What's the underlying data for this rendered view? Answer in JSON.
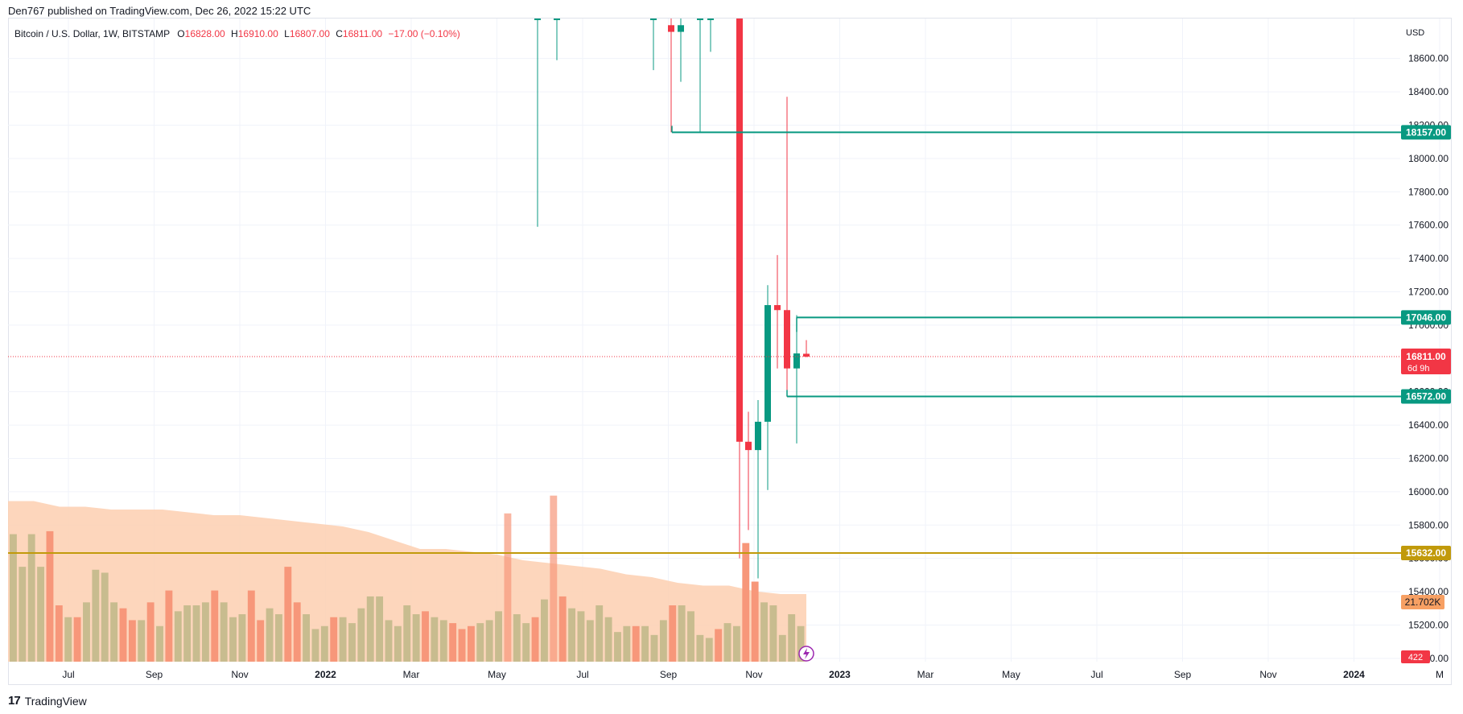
{
  "publish_line": "Den767 published on TradingView.com, Dec 26, 2022 15:22 UTC",
  "legend": {
    "symbol": "Bitcoin / U.S. Dollar, 1W, BITSTAMP",
    "o_label": "O",
    "o_value": "16828.00",
    "h_label": "H",
    "h_value": "16910.00",
    "l_label": "L",
    "l_value": "16807.00",
    "c_label": "C",
    "c_value": "16811.00",
    "change": "−17.00 (−0.10%)"
  },
  "currency": "USD",
  "brand": "TradingView",
  "brand_mark": "17",
  "colors": {
    "up": "#089981",
    "down": "#f23645",
    "level_line": "#089981",
    "level_yellow": "#c19a0b",
    "vol_up": "#c8bc8f",
    "vol_down": "#f7977a",
    "vol_area": "#fdcfb0",
    "price_tag": "#f23645",
    "vol_tag": "#f7a063",
    "grid": "#f0f3fa"
  },
  "chart_data": {
    "type": "candlestick",
    "y_axis_labels": [
      "18600.00",
      "18400.00",
      "18200.00",
      "18000.00",
      "17800.00",
      "17600.00",
      "17400.00",
      "17200.00",
      "17000.00",
      "16600.00",
      "16400.00",
      "16200.00",
      "16000.00",
      "15800.00",
      "15600.00",
      "15400.00",
      "15200.00",
      "15000.00"
    ],
    "x_axis_labels": [
      "Jul",
      "Sep",
      "Nov",
      "2022",
      "Mar",
      "May",
      "Jul",
      "Sep",
      "Nov",
      "2023",
      "Mar",
      "May",
      "Jul",
      "Sep",
      "Nov",
      "2024",
      "M"
    ],
    "x_axis_bold": [
      "2022",
      "2023",
      "2024"
    ],
    "ylim": [
      14980,
      18840
    ],
    "candles": [
      {
        "o": 19200,
        "h": 19300,
        "l": 17590,
        "c": 19200
      },
      {
        "o": 19200,
        "h": 19300,
        "l": 18590,
        "c": 19200
      },
      {
        "o": 18900,
        "h": 19300,
        "l": 18530,
        "c": 19200
      },
      {
        "o": 18800,
        "h": 18900,
        "l": 18157,
        "c": 18760
      },
      {
        "o": 18760,
        "h": 18960,
        "l": 18460,
        "c": 18800
      },
      {
        "o": 19200,
        "h": 19300,
        "l": 18157,
        "c": 19200
      },
      {
        "o": 18900,
        "h": 19300,
        "l": 18640,
        "c": 19200
      },
      {
        "o": 19200,
        "h": 19300,
        "l": 15600,
        "c": 16300
      },
      {
        "o": 16300,
        "h": 16480,
        "l": 15770,
        "c": 16250
      },
      {
        "o": 16250,
        "h": 16550,
        "l": 15480,
        "c": 16420
      },
      {
        "o": 16420,
        "h": 17240,
        "l": 16010,
        "c": 17120
      },
      {
        "o": 17120,
        "h": 17420,
        "l": 16740,
        "c": 17090
      },
      {
        "o": 17090,
        "h": 18370,
        "l": 16570,
        "c": 16740
      },
      {
        "o": 16740,
        "h": 17060,
        "l": 16290,
        "c": 16830
      },
      {
        "o": 16828,
        "h": 16910,
        "l": 16807,
        "c": 16811
      }
    ],
    "candle_x_labels": [
      "May",
      "Jun",
      "Sep",
      "Sep",
      "Sep",
      "Oct",
      "Oct",
      "Nov",
      "Nov",
      "Nov",
      "Nov",
      "Dec",
      "Dec",
      "Dec",
      "Dec"
    ],
    "levels": [
      {
        "price": 18157,
        "label": "18157.00"
      },
      {
        "price": 17046,
        "label": "17046.00"
      },
      {
        "price": 16572,
        "label": "16572.00"
      },
      {
        "price": 15632,
        "label": "15632.00"
      }
    ],
    "last_price": {
      "price": 16811,
      "label": "16811.00",
      "countdown": "6d 9h"
    },
    "volume": {
      "bars": [
        0.43,
        0.32,
        0.43,
        0.32,
        0.44,
        0.19,
        0.15,
        0.15,
        0.2,
        0.31,
        0.3,
        0.2,
        0.18,
        0.14,
        0.14,
        0.2,
        0.12,
        0.24,
        0.17,
        0.19,
        0.19,
        0.2,
        0.24,
        0.2,
        0.15,
        0.16,
        0.24,
        0.14,
        0.18,
        0.16,
        0.32,
        0.2,
        0.16,
        0.11,
        0.12,
        0.15,
        0.15,
        0.13,
        0.18,
        0.22,
        0.22,
        0.14,
        0.12,
        0.19,
        0.16,
        0.17,
        0.15,
        0.14,
        0.13,
        0.11,
        0.12,
        0.13,
        0.14,
        0.17,
        0.5,
        0.16,
        0.13,
        0.15,
        0.21,
        0.56,
        0.22,
        0.18,
        0.17,
        0.14,
        0.19,
        0.15,
        0.1,
        0.12,
        0.12,
        0.12,
        0.09,
        0.14,
        0.19,
        0.19,
        0.17,
        0.09,
        0.08,
        0.11,
        0.13,
        0.12,
        0.4,
        0.27,
        0.2,
        0.19,
        0.09,
        0.16,
        0.12
      ],
      "up": [
        1,
        1,
        1,
        1,
        0,
        0,
        1,
        0,
        1,
        1,
        1,
        1,
        0,
        0,
        1,
        0,
        1,
        0,
        1,
        1,
        1,
        1,
        0,
        1,
        1,
        1,
        0,
        0,
        1,
        1,
        0,
        0,
        1,
        1,
        1,
        0,
        1,
        1,
        1,
        1,
        1,
        1,
        1,
        1,
        1,
        0,
        1,
        1,
        0,
        0,
        0,
        1,
        1,
        1,
        0,
        1,
        1,
        0,
        1,
        0,
        0,
        1,
        1,
        1,
        1,
        1,
        1,
        1,
        0,
        1,
        1,
        1,
        0,
        1,
        1,
        1,
        1,
        0,
        1,
        1,
        0,
        0,
        1,
        1,
        1,
        1,
        1
      ],
      "area_top_frac": [
        0.57,
        0.57,
        0.55,
        0.55,
        0.54,
        0.54,
        0.54,
        0.53,
        0.52,
        0.52,
        0.51,
        0.5,
        0.49,
        0.48,
        0.46,
        0.43,
        0.4,
        0.4,
        0.39,
        0.38,
        0.36,
        0.35,
        0.34,
        0.33,
        0.31,
        0.3,
        0.28,
        0.27,
        0.27,
        0.25,
        0.24,
        0.24
      ],
      "tag_vol": "21.702K",
      "tag_count": "422"
    }
  }
}
